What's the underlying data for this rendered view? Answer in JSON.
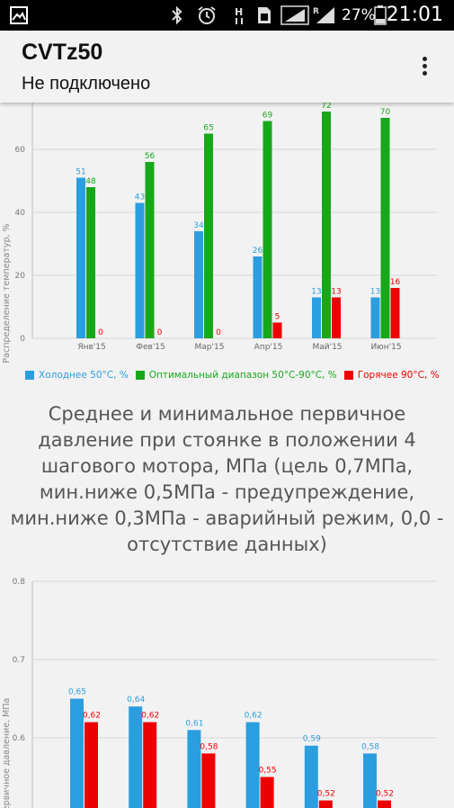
{
  "status_bar": {
    "battery_percent": "27%",
    "time": "21:01",
    "icons": [
      "gallery-icon",
      "bluetooth-icon",
      "alarm-icon",
      "h-signal-icon",
      "sim-icon",
      "signal-icon",
      "r-signal-icon",
      "battery-icon"
    ]
  },
  "app_bar": {
    "title": "CVTz50",
    "subtitle": "Не подключено",
    "menu_icon": "overflow-menu-icon"
  },
  "colors": {
    "blue": "#2B9EE0",
    "green": "#17A81A",
    "red": "#EE0000"
  },
  "chart_data": [
    {
      "type": "bar",
      "ylabel": "Распределение температур, %",
      "ylim": [
        0,
        75
      ],
      "y_ticks": [
        "0",
        "20",
        "40",
        "60"
      ],
      "categories": [
        "Янв'15",
        "Фев'15",
        "Мар'15",
        "Апр'15",
        "Май'15",
        "Июн'15"
      ],
      "series": [
        {
          "name": "Холоднее 50°C, %",
          "color": "#2B9EE0",
          "values": [
            51,
            43,
            34,
            26,
            13,
            13
          ]
        },
        {
          "name": "Оптимальный диапазон 50°C-90°C, %",
          "color": "#17A81A",
          "values": [
            48,
            56,
            65,
            69,
            72,
            70
          ]
        },
        {
          "name": "Горячее 90°C, %",
          "color": "#EE0000",
          "values": [
            0,
            0,
            0,
            5,
            13,
            16
          ]
        }
      ]
    },
    {
      "type": "bar",
      "title": "Среднее и минимальное первичное давление при стоянке в положении 4 шагового мотора, МПа (цель 0,7МПа, мин.ниже 0,5МПа - предупреждение, мин.ниже 0,3МПа - аварийный режим, 0,0 - отсутствие данных)",
      "ylabel": "Первичное давление, МПа",
      "ylim": [
        0.5,
        0.82
      ],
      "y_ticks": [
        "0.6",
        "0.7",
        "0.8"
      ],
      "series": [
        {
          "values": [
            0.65,
            0.64,
            0.61,
            0.62,
            0.59,
            0.58
          ],
          "labels": [
            "0,65",
            "0,64",
            "0,61",
            "0,62",
            "0,59",
            "0,58"
          ],
          "color": "#2B9EE0"
        },
        {
          "values": [
            0.62,
            0.62,
            0.58,
            0.55,
            0.52,
            0.52
          ],
          "labels": [
            "0,62",
            "0,62",
            "0,58",
            "0,55",
            "0,52",
            "0,52"
          ],
          "color": "#EE0000"
        }
      ]
    }
  ]
}
